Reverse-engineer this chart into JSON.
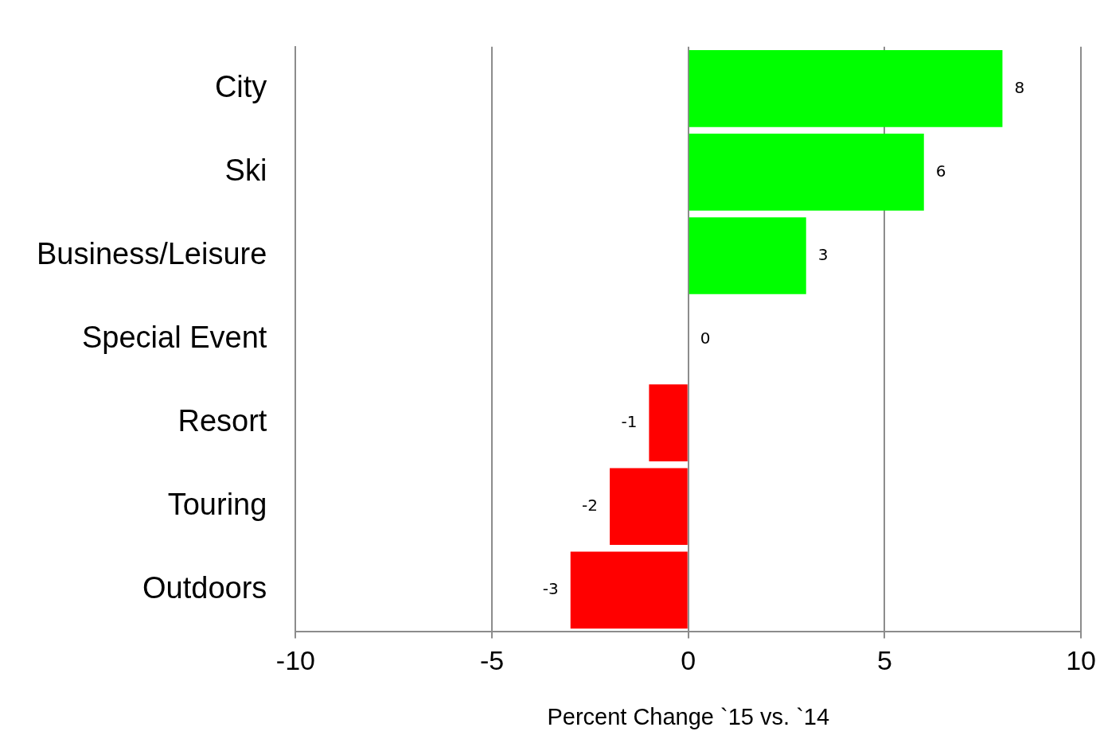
{
  "chart_data": {
    "type": "bar",
    "orientation": "horizontal",
    "xlabel": "Percent Change `15 vs. `14",
    "categories": [
      "City",
      "Ski",
      "Business/Leisure",
      "Special Event",
      "Resort",
      "Touring",
      "Outdoors"
    ],
    "values": [
      8,
      6,
      3,
      0,
      -1,
      -2,
      -3
    ],
    "colors": [
      "#00ff00",
      "#00ff00",
      "#00ff00",
      "#00ff00",
      "#ff0000",
      "#ff0000",
      "#ff0000"
    ],
    "xlim": [
      -10,
      10
    ],
    "xticks": [
      -10,
      -5,
      0,
      5,
      10
    ],
    "grid": "x",
    "data_labels": true,
    "legend": false
  }
}
